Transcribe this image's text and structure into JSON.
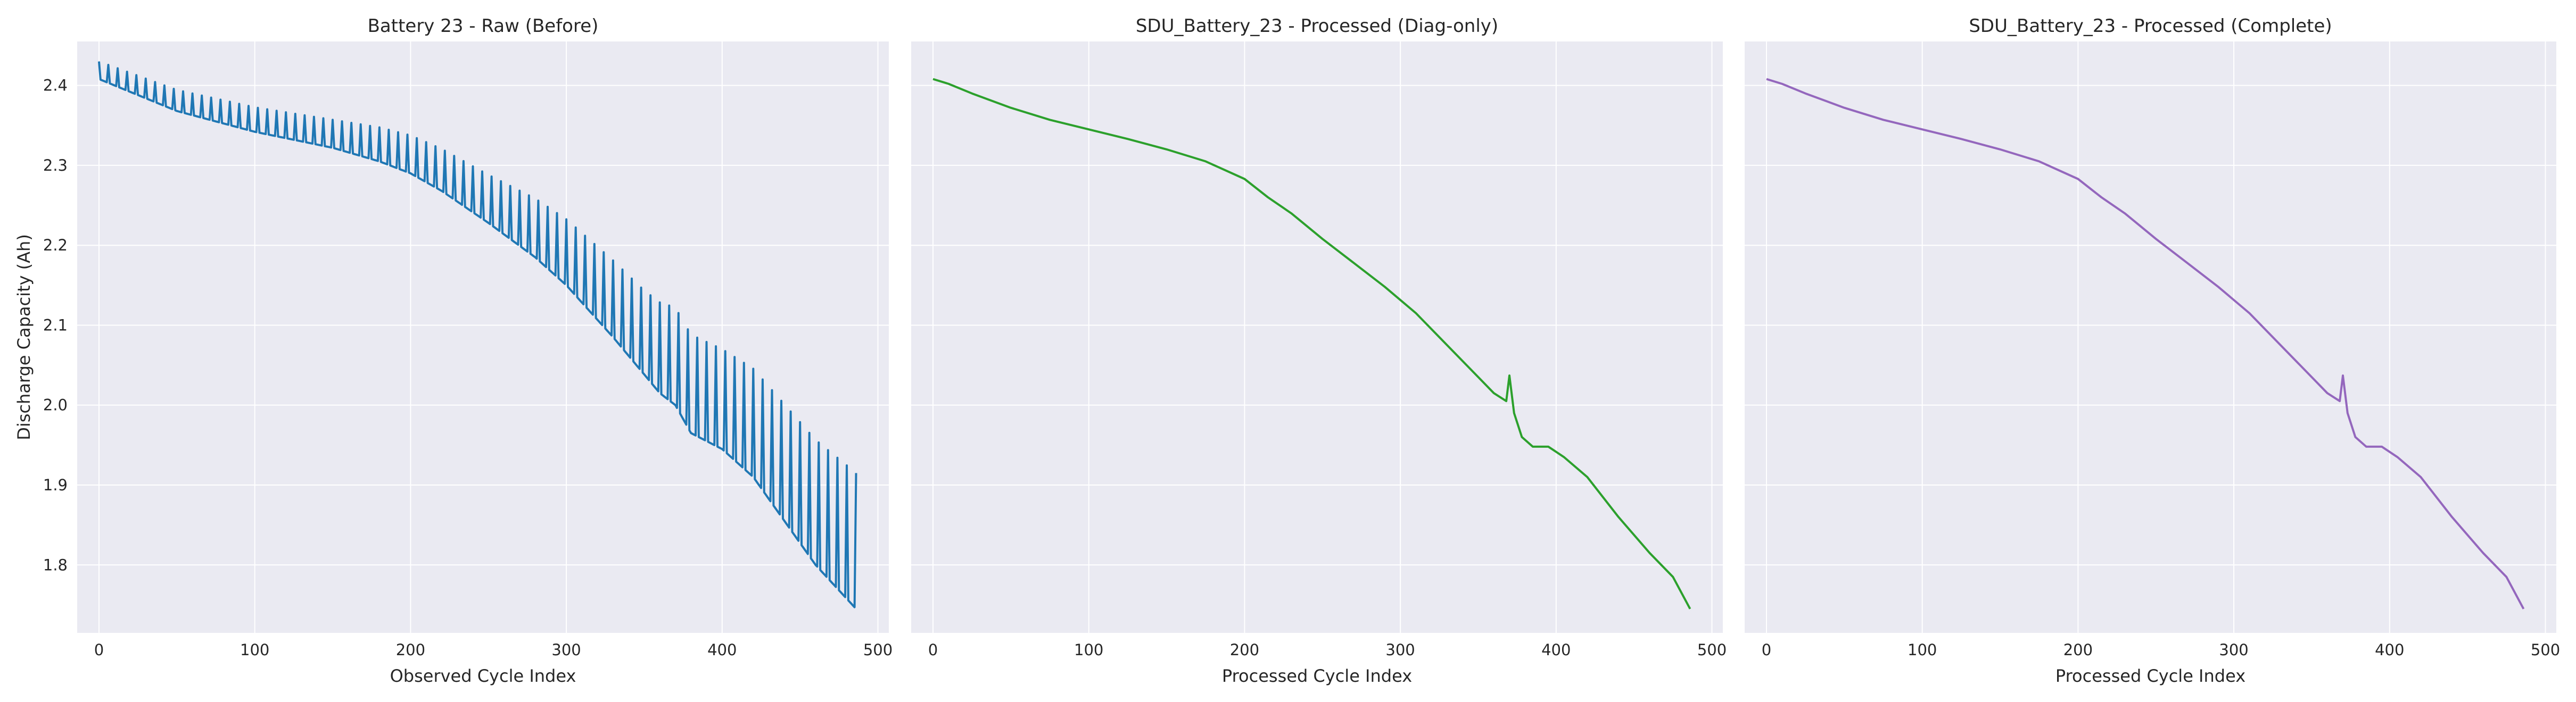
{
  "chart_data": [
    {
      "type": "line",
      "title": "Battery 23 - Raw (Before)",
      "xlabel": "Observed Cycle Index",
      "ylabel": "Discharge Capacity (Ah)",
      "xlim": [
        -14,
        507
      ],
      "ylim": [
        1.715,
        2.455
      ],
      "xticks": [
        0,
        100,
        200,
        300,
        400,
        500
      ],
      "yticks": [
        1.8,
        1.9,
        2.0,
        2.1,
        2.2,
        2.3,
        2.4
      ],
      "grid": true,
      "series": [
        {
          "color": "#1f77b4",
          "trend_x": [
            0,
            20,
            50,
            100,
            150,
            180,
            200,
            220,
            250,
            280,
            300,
            330,
            360,
            370,
            380,
            400,
            420,
            440,
            460,
            486
          ],
          "trend_y": [
            2.408,
            2.392,
            2.368,
            2.342,
            2.322,
            2.305,
            2.29,
            2.268,
            2.228,
            2.185,
            2.15,
            2.085,
            2.015,
            2.0,
            1.965,
            1.945,
            1.91,
            1.855,
            1.8,
            1.745
          ],
          "periodic_spike_interval": 6,
          "periodic_spike_height": [
            [
              0,
              0.022
            ],
            [
              150,
              0.035
            ],
            [
              250,
              0.06
            ],
            [
              350,
              0.105
            ],
            [
              370,
              0.122
            ],
            [
              400,
              0.125
            ],
            [
              486,
              0.17
            ]
          ]
        }
      ]
    },
    {
      "type": "line",
      "title": "SDU_Battery_23 - Processed (Diag-only)",
      "xlabel": "Processed Cycle Index",
      "ylabel": "",
      "xlim": [
        -14,
        507
      ],
      "ylim": [
        1.715,
        2.455
      ],
      "xticks": [
        0,
        100,
        200,
        300,
        400,
        500
      ],
      "yticks": [
        1.8,
        1.9,
        2.0,
        2.1,
        2.2,
        2.3,
        2.4
      ],
      "grid": true,
      "series": [
        {
          "color": "#2ca02c",
          "x": [
            0,
            10,
            25,
            50,
            75,
            100,
            125,
            150,
            175,
            200,
            215,
            230,
            250,
            270,
            290,
            310,
            330,
            350,
            360,
            368,
            370,
            373,
            378,
            385,
            395,
            405,
            420,
            440,
            460,
            475,
            486
          ],
          "y": [
            2.408,
            2.402,
            2.39,
            2.372,
            2.357,
            2.345,
            2.333,
            2.32,
            2.305,
            2.283,
            2.26,
            2.24,
            2.208,
            2.178,
            2.148,
            2.115,
            2.075,
            2.035,
            2.015,
            2.005,
            2.037,
            1.99,
            1.96,
            1.948,
            1.948,
            1.935,
            1.91,
            1.86,
            1.815,
            1.785,
            1.745
          ]
        }
      ]
    },
    {
      "type": "line",
      "title": "SDU_Battery_23 - Processed (Complete)",
      "xlabel": "Processed Cycle Index",
      "ylabel": "",
      "xlim": [
        -14,
        507
      ],
      "ylim": [
        1.715,
        2.455
      ],
      "xticks": [
        0,
        100,
        200,
        300,
        400,
        500
      ],
      "yticks": [
        1.8,
        1.9,
        2.0,
        2.1,
        2.2,
        2.3,
        2.4
      ],
      "grid": true,
      "series": [
        {
          "color": "#9467bd",
          "x": [
            0,
            10,
            25,
            50,
            75,
            100,
            125,
            150,
            175,
            200,
            215,
            230,
            250,
            270,
            290,
            310,
            330,
            350,
            360,
            368,
            370,
            373,
            378,
            385,
            395,
            405,
            420,
            440,
            460,
            475,
            486
          ],
          "y": [
            2.408,
            2.402,
            2.39,
            2.372,
            2.357,
            2.345,
            2.333,
            2.32,
            2.305,
            2.283,
            2.26,
            2.24,
            2.208,
            2.178,
            2.148,
            2.115,
            2.075,
            2.035,
            2.015,
            2.005,
            2.037,
            1.99,
            1.96,
            1.948,
            1.948,
            1.935,
            1.91,
            1.86,
            1.815,
            1.785,
            1.745
          ]
        }
      ]
    }
  ]
}
